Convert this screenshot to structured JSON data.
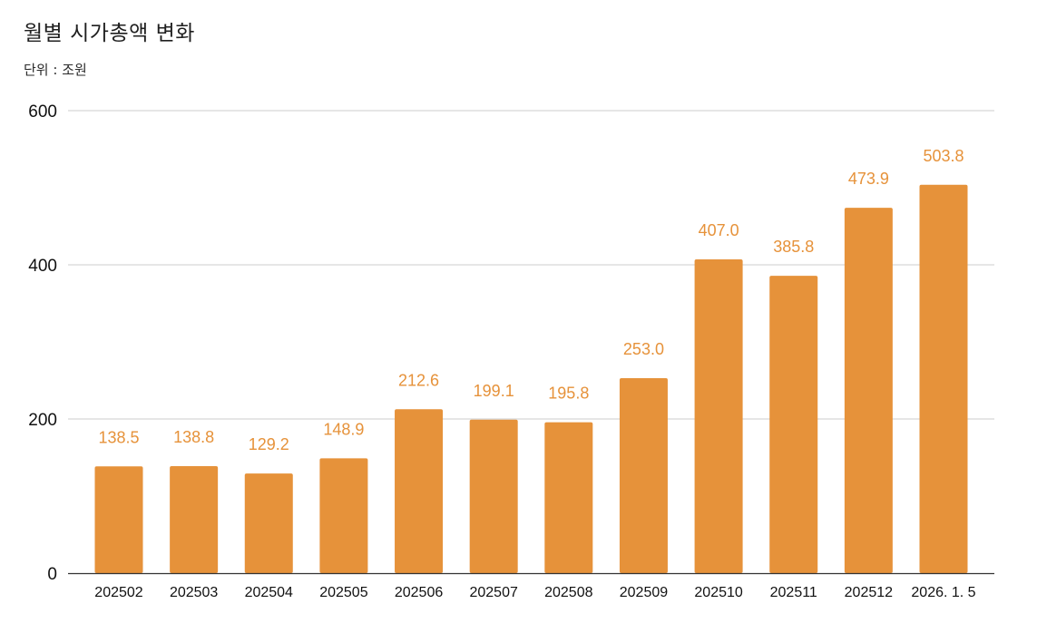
{
  "chart_data": {
    "type": "bar",
    "title": "월별 시가총액 변화",
    "subtitle": "단위 : 조원",
    "xlabel": "",
    "ylabel": "",
    "categories": [
      "202502",
      "202503",
      "202504",
      "202505",
      "202506",
      "202507",
      "202508",
      "202509",
      "202510",
      "202511",
      "202512",
      "2026. 1. 5"
    ],
    "values": [
      138.5,
      138.8,
      129.2,
      148.9,
      212.6,
      199.1,
      195.8,
      253.0,
      407.0,
      385.8,
      473.9,
      503.8
    ],
    "value_labels": [
      "138.5",
      "138.8",
      "129.2",
      "148.9",
      "212.6",
      "199.1",
      "195.8",
      "253.0",
      "407.0",
      "385.8",
      "473.9",
      "503.8"
    ],
    "ylim": [
      0,
      600
    ],
    "yticks": [
      "0",
      "200",
      "400",
      "600"
    ],
    "grid": true,
    "legend": "none",
    "bar_color": "#E6923A",
    "label_color": "#E6923A",
    "grid_color": "#CCCCCC",
    "axis_color": "#333333"
  }
}
